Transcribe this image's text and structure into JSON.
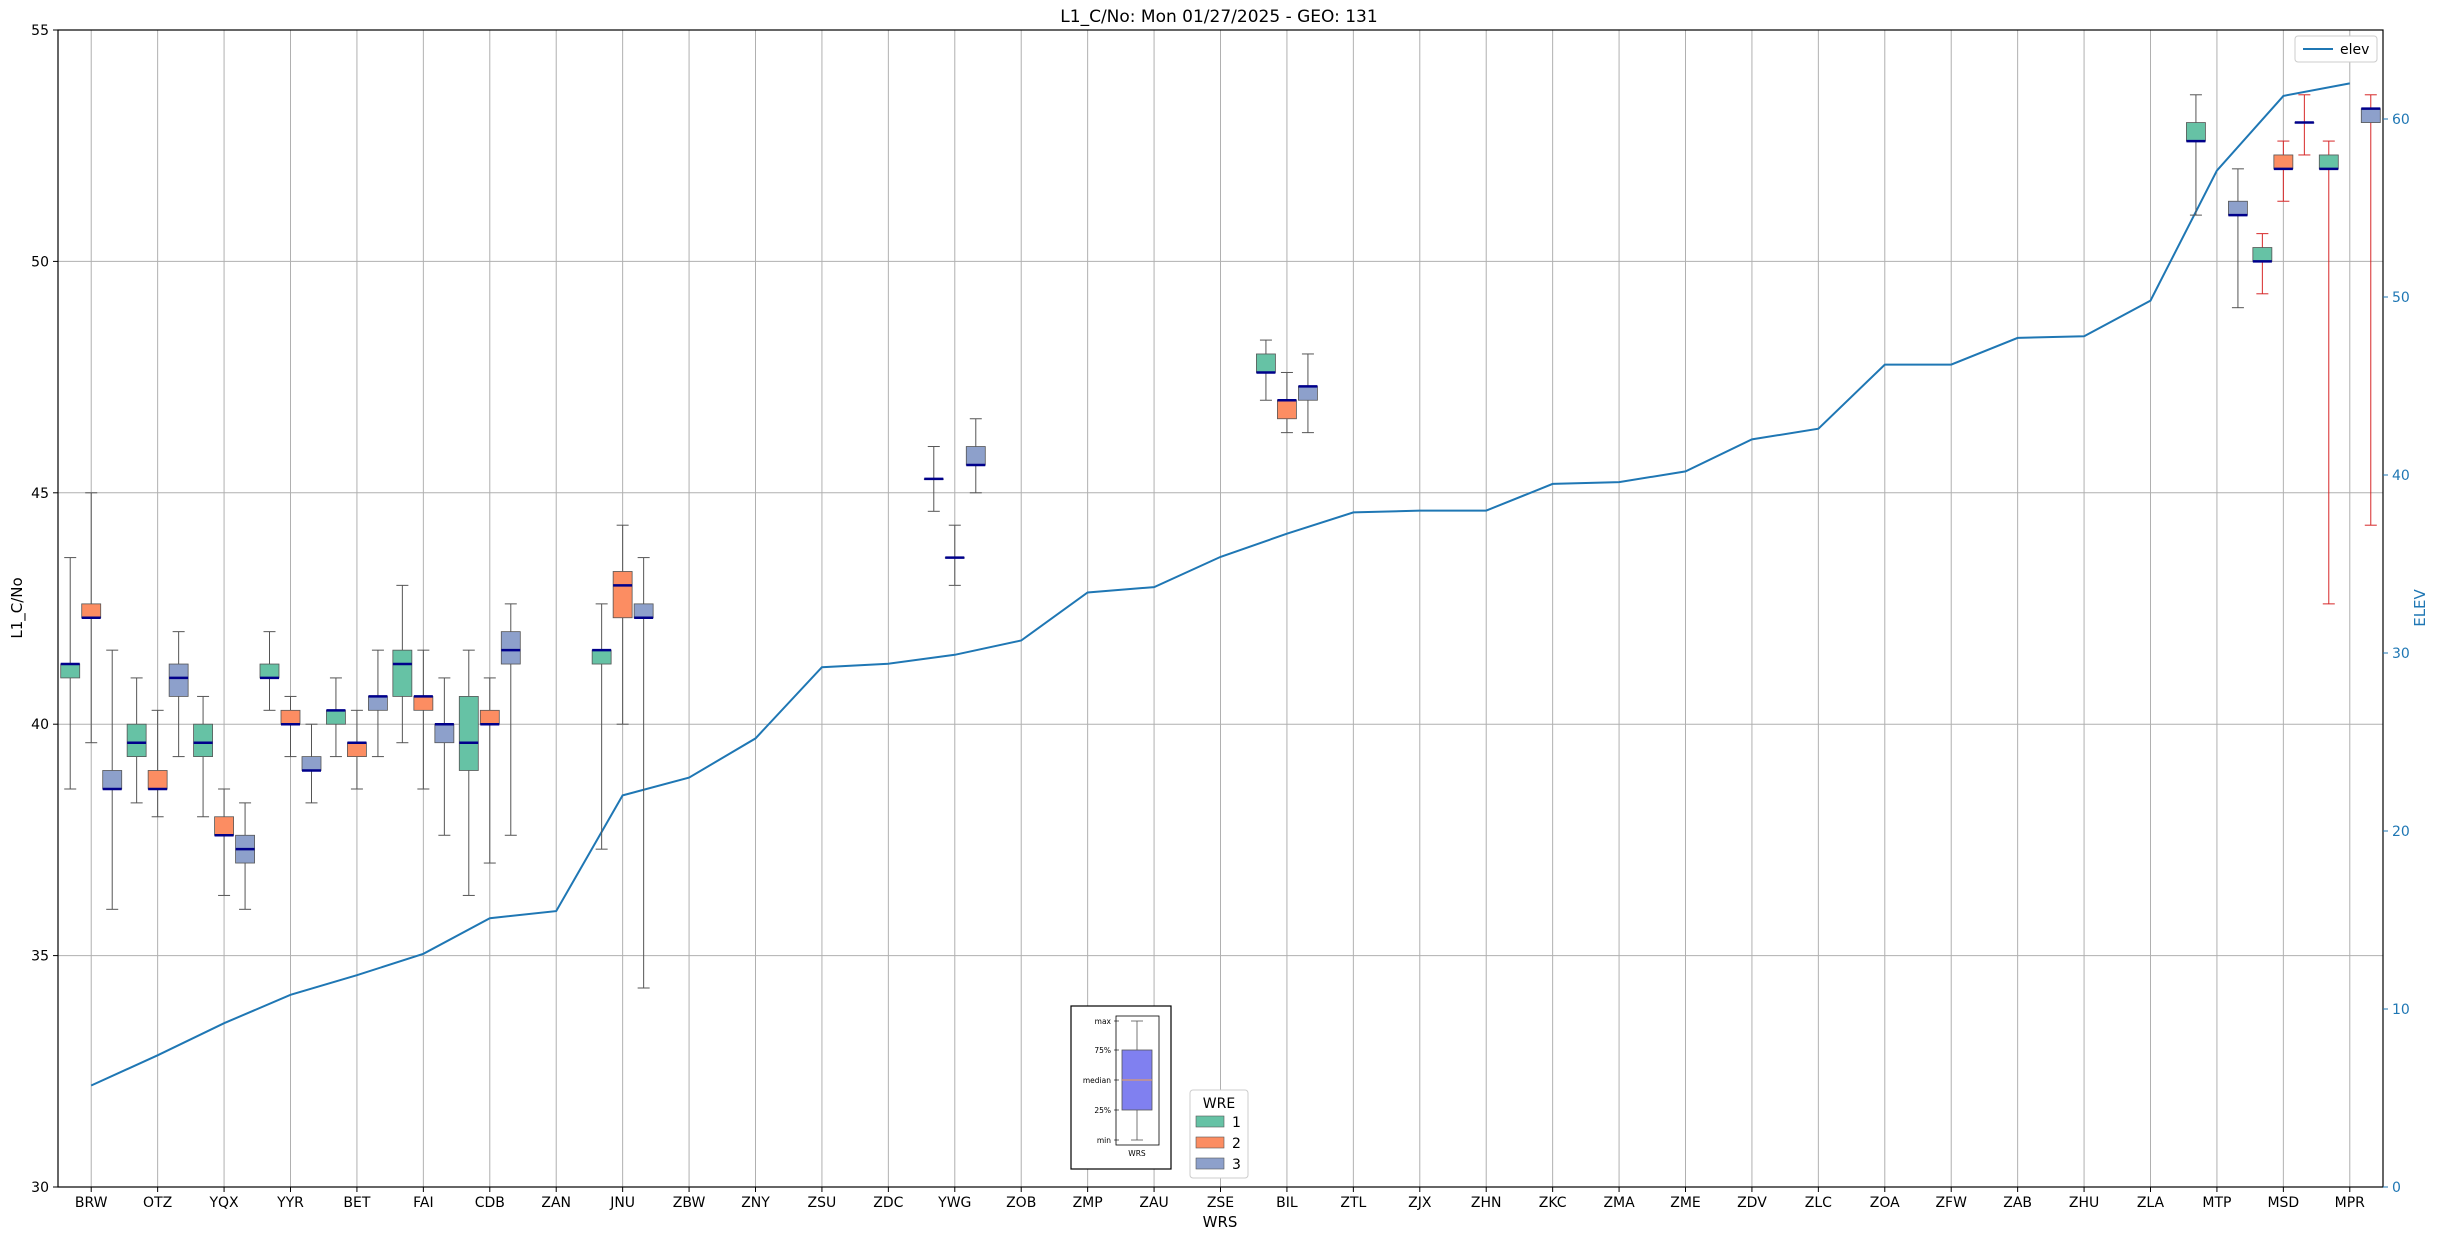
{
  "chart_data": {
    "type": "box",
    "title": "L1_C/No: Mon 01/27/2025 - GEO: 131",
    "xlabel": "WRS",
    "ylabel": "L1_C/No",
    "y2label": "ELEV",
    "ylim": [
      30,
      55
    ],
    "y2lim": [
      0,
      65
    ],
    "yticks": [
      30,
      35,
      40,
      45,
      50,
      55
    ],
    "y2ticks": [
      0,
      10,
      20,
      30,
      40,
      50,
      60
    ],
    "grid": true,
    "categories": [
      "BRW",
      "OTZ",
      "YQX",
      "YYR",
      "BET",
      "FAI",
      "CDB",
      "ZAN",
      "JNU",
      "ZBW",
      "ZNY",
      "ZSU",
      "ZDC",
      "YWG",
      "ZOB",
      "ZMP",
      "ZAU",
      "ZSE",
      "BIL",
      "ZTL",
      "ZJX",
      "ZHN",
      "ZKC",
      "ZMA",
      "ZME",
      "ZDV",
      "ZLC",
      "ZOA",
      "ZFW",
      "ZAB",
      "ZHU",
      "ZLA",
      "MTP",
      "MSD",
      "MPR"
    ],
    "colors": {
      "wre1": "#66c2a5",
      "wre2": "#fc8d62",
      "wre3": "#8da0cb",
      "elev": "#1f77b4",
      "median": "#00008b",
      "whisker_gray": "#555555",
      "whisker_red": "#d62728",
      "mini_box": "#8080f0"
    },
    "line_legend": {
      "label": "elev",
      "position": "upper right"
    },
    "wre_legend": {
      "title": "WRE",
      "entries": [
        "1",
        "2",
        "3"
      ],
      "position": "lower center"
    },
    "mini_legend": {
      "labels": [
        "max",
        "75%",
        "median",
        "25%",
        "min"
      ],
      "xlabel": "WRS"
    },
    "elevation": [
      5.7,
      7.4,
      9.2,
      10.8,
      11.9,
      13.1,
      15.1,
      15.5,
      22.0,
      23.0,
      25.2,
      29.2,
      29.4,
      29.9,
      30.7,
      33.4,
      33.7,
      35.4,
      36.7,
      37.9,
      38.0,
      38.0,
      39.5,
      39.6,
      40.2,
      42.0,
      42.6,
      46.2,
      46.2,
      47.7,
      47.8,
      49.8,
      57.1,
      61.3,
      62.0
    ],
    "boxes": [
      {
        "station": "BRW",
        "wre": 1,
        "min": 38.6,
        "q1": 41.0,
        "median": 41.3,
        "q3": 41.3,
        "max": 43.6
      },
      {
        "station": "BRW",
        "wre": 2,
        "min": 39.6,
        "q1": 42.3,
        "median": 42.3,
        "q3": 42.6,
        "max": 45.0
      },
      {
        "station": "BRW",
        "wre": 3,
        "min": 36.0,
        "q1": 38.6,
        "median": 38.6,
        "q3": 39.0,
        "max": 41.6
      },
      {
        "station": "OTZ",
        "wre": 1,
        "min": 38.3,
        "q1": 39.3,
        "median": 39.6,
        "q3": 40.0,
        "max": 41.0
      },
      {
        "station": "OTZ",
        "wre": 2,
        "min": 38.0,
        "q1": 38.6,
        "median": 38.6,
        "q3": 39.0,
        "max": 40.3
      },
      {
        "station": "OTZ",
        "wre": 3,
        "min": 39.3,
        "q1": 40.6,
        "median": 41.0,
        "q3": 41.3,
        "max": 42.0
      },
      {
        "station": "YQX",
        "wre": 1,
        "min": 38.0,
        "q1": 39.3,
        "median": 39.6,
        "q3": 40.0,
        "max": 40.6
      },
      {
        "station": "YQX",
        "wre": 2,
        "min": 36.3,
        "q1": 37.6,
        "median": 37.6,
        "q3": 38.0,
        "max": 38.6
      },
      {
        "station": "YQX",
        "wre": 3,
        "min": 36.0,
        "q1": 37.0,
        "median": 37.3,
        "q3": 37.6,
        "max": 38.3
      },
      {
        "station": "YYR",
        "wre": 1,
        "min": 40.3,
        "q1": 41.0,
        "median": 41.0,
        "q3": 41.3,
        "max": 42.0
      },
      {
        "station": "YYR",
        "wre": 2,
        "min": 39.3,
        "q1": 40.0,
        "median": 40.0,
        "q3": 40.3,
        "max": 40.6
      },
      {
        "station": "YYR",
        "wre": 3,
        "min": 38.3,
        "q1": 39.0,
        "median": 39.0,
        "q3": 39.3,
        "max": 40.0
      },
      {
        "station": "BET",
        "wre": 1,
        "min": 39.3,
        "q1": 40.0,
        "median": 40.3,
        "q3": 40.3,
        "max": 41.0
      },
      {
        "station": "BET",
        "wre": 2,
        "min": 38.6,
        "q1": 39.3,
        "median": 39.6,
        "q3": 39.6,
        "max": 40.3
      },
      {
        "station": "BET",
        "wre": 3,
        "min": 39.3,
        "q1": 40.3,
        "median": 40.6,
        "q3": 40.6,
        "max": 41.6
      },
      {
        "station": "FAI",
        "wre": 1,
        "min": 39.6,
        "q1": 40.6,
        "median": 41.3,
        "q3": 41.6,
        "max": 43.0
      },
      {
        "station": "FAI",
        "wre": 2,
        "min": 38.6,
        "q1": 40.3,
        "median": 40.6,
        "q3": 40.6,
        "max": 41.6
      },
      {
        "station": "FAI",
        "wre": 3,
        "min": 37.6,
        "q1": 39.6,
        "median": 40.0,
        "q3": 40.0,
        "max": 41.0
      },
      {
        "station": "CDB",
        "wre": 1,
        "min": 36.3,
        "q1": 39.0,
        "median": 39.6,
        "q3": 40.6,
        "max": 41.6
      },
      {
        "station": "CDB",
        "wre": 2,
        "min": 37.0,
        "q1": 40.0,
        "median": 40.0,
        "q3": 40.3,
        "max": 41.0
      },
      {
        "station": "CDB",
        "wre": 3,
        "min": 37.6,
        "q1": 41.3,
        "median": 41.6,
        "q3": 42.0,
        "max": 42.6
      },
      {
        "station": "JNU",
        "wre": 1,
        "min": 37.3,
        "q1": 41.3,
        "median": 41.6,
        "q3": 41.6,
        "max": 42.6
      },
      {
        "station": "JNU",
        "wre": 2,
        "min": 40.0,
        "q1": 42.3,
        "median": 43.0,
        "q3": 43.3,
        "max": 44.3
      },
      {
        "station": "JNU",
        "wre": 3,
        "min": 34.3,
        "q1": 42.3,
        "median": 42.3,
        "q3": 42.6,
        "max": 43.6
      },
      {
        "station": "YWG",
        "wre": 1,
        "min": 44.6,
        "q1": 45.3,
        "median": 45.3,
        "q3": 45.3,
        "max": 46.0
      },
      {
        "station": "YWG",
        "wre": 2,
        "min": 43.0,
        "q1": 43.6,
        "median": 43.6,
        "q3": 43.6,
        "max": 44.3
      },
      {
        "station": "YWG",
        "wre": 3,
        "min": 45.0,
        "q1": 45.6,
        "median": 45.6,
        "q3": 46.0,
        "max": 46.6
      },
      {
        "station": "BIL",
        "wre": 1,
        "min": 47.0,
        "q1": 47.6,
        "median": 47.6,
        "q3": 48.0,
        "max": 48.3
      },
      {
        "station": "BIL",
        "wre": 2,
        "min": 46.3,
        "q1": 46.6,
        "median": 47.0,
        "q3": 47.0,
        "max": 47.6
      },
      {
        "station": "BIL",
        "wre": 3,
        "min": 46.3,
        "q1": 47.0,
        "median": 47.3,
        "q3": 47.3,
        "max": 48.0
      },
      {
        "station": "MTP",
        "wre": 1,
        "min": 51.0,
        "q1": 52.6,
        "median": 52.6,
        "q3": 53.0,
        "max": 53.6
      },
      {
        "station": "MTP",
        "wre": 3,
        "min": 49.0,
        "q1": 51.0,
        "median": 51.0,
        "q3": 51.3,
        "max": 52.0
      },
      {
        "station": "MSD",
        "wre": 1,
        "min": 49.3,
        "q1": 50.0,
        "median": 50.0,
        "q3": 50.3,
        "max": 50.6
      },
      {
        "station": "MSD",
        "wre": 2,
        "min": 51.3,
        "q1": 52.0,
        "median": 52.0,
        "q3": 52.3,
        "max": 52.6
      },
      {
        "station": "MSD",
        "wre": 3,
        "min": 52.3,
        "q1": 53.0,
        "median": 53.0,
        "q3": 53.0,
        "max": 53.6
      },
      {
        "station": "MPR",
        "wre": 1,
        "min": 42.6,
        "q1": 52.0,
        "median": 52.0,
        "q3": 52.3,
        "max": 52.6
      },
      {
        "station": "MPR",
        "wre": 3,
        "min": 44.3,
        "q1": 53.0,
        "median": 53.3,
        "q3": 53.3,
        "max": 53.6
      }
    ]
  }
}
